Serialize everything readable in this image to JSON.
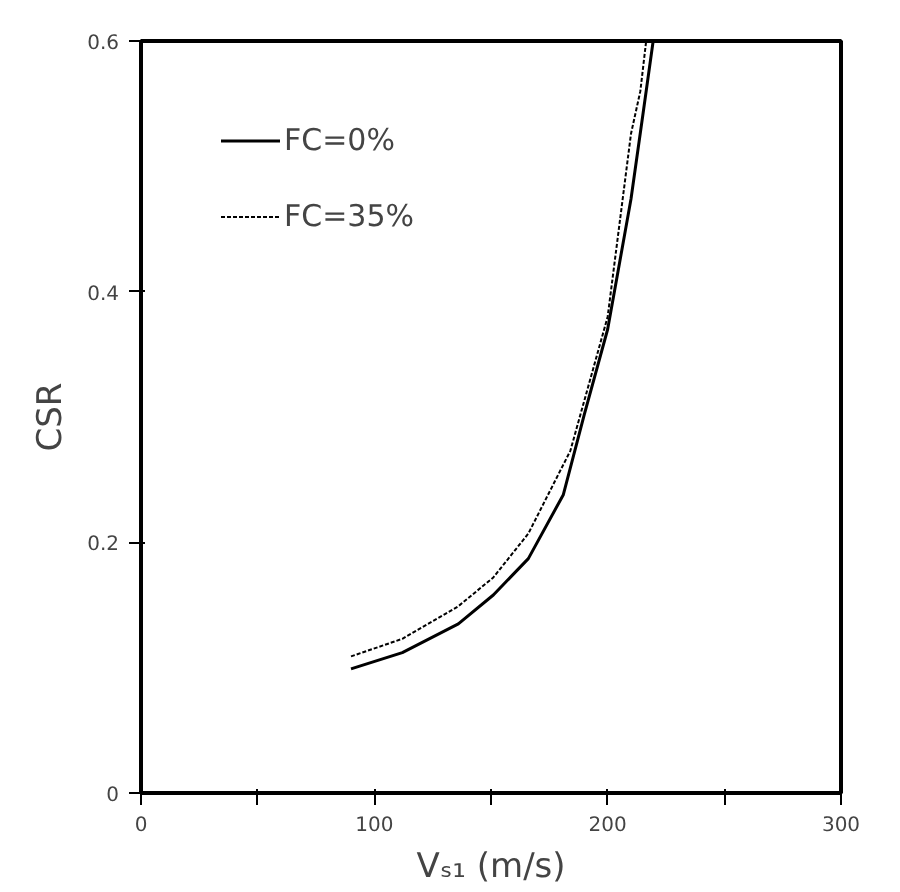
{
  "chart_data": {
    "type": "line",
    "xlabel": "Vₛ₁ (m/s)",
    "ylabel": "CSR",
    "xlim": [
      0,
      300
    ],
    "ylim": [
      0,
      0.6
    ],
    "xticks": [
      0,
      {
        "value": 50,
        "label": null
      },
      100,
      {
        "value": 150,
        "label": null
      },
      200,
      {
        "value": 250,
        "label": null
      },
      300
    ],
    "yticks": [
      0,
      0.2,
      0.4,
      0.6
    ],
    "grid": false,
    "legend": "top left",
    "marker": "none",
    "series": [
      {
        "name": "FC=0%",
        "color": "#000000",
        "line_style": "solid",
        "x": [
          90,
          112,
          136,
          151,
          166,
          181,
          190,
          200,
          210,
          215,
          219.5
        ],
        "values": [
          0.099,
          0.112,
          0.135,
          0.158,
          0.187,
          0.238,
          0.302,
          0.37,
          0.474,
          0.54,
          0.6
        ]
      },
      {
        "name": "FC=35%",
        "color": "#000000",
        "line_style": "dashed",
        "x": [
          90,
          112,
          136,
          151,
          166,
          184,
          200,
          210,
          214,
          216.5
        ],
        "values": [
          0.109,
          0.123,
          0.149,
          0.172,
          0.207,
          0.273,
          0.38,
          0.526,
          0.56,
          0.6
        ]
      }
    ]
  }
}
